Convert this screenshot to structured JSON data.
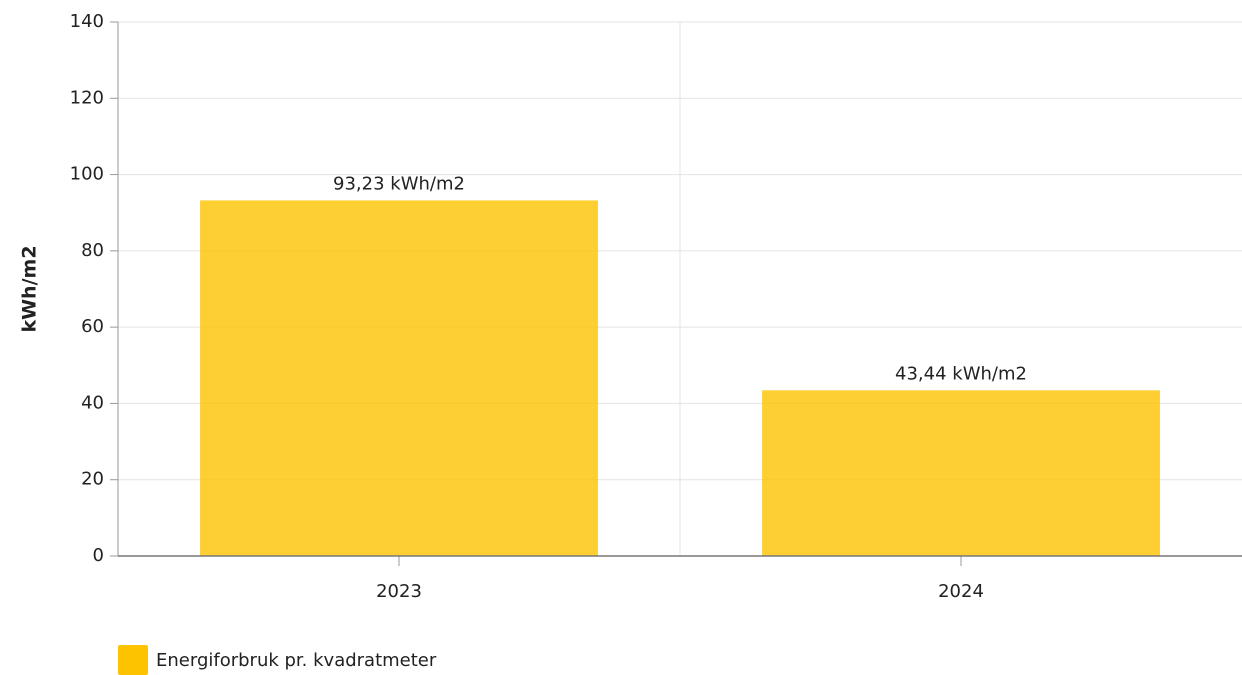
{
  "chart_data": {
    "type": "bar",
    "y_axis_label": "kWh/m2",
    "categories": [
      "2023",
      "2024"
    ],
    "series": [
      {
        "name": "Energiforbruk pr. kvadratmeter",
        "color": "#fdc300",
        "values": [
          93.23,
          43.44
        ],
        "value_labels": [
          "93,23 kWh/m2",
          "43,44 kWh/m2"
        ]
      }
    ],
    "ylim": [
      0,
      140
    ],
    "yticks": [
      0,
      20,
      40,
      60,
      80,
      100,
      120,
      140
    ],
    "grid": true,
    "legend": "bottom-left"
  }
}
